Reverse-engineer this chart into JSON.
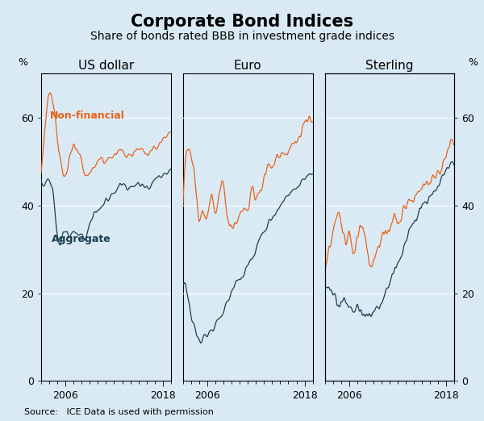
{
  "title": "Corporate Bond Indices",
  "subtitle": "Share of bonds rated BBB in investment grade indices",
  "panel_labels": [
    "US dollar",
    "Euro",
    "Sterling"
  ],
  "ylabel_left": "%",
  "ylabel_right": "%",
  "yticks": [
    0,
    20,
    40,
    60
  ],
  "ylim": [
    0,
    70
  ],
  "source": "Source:   ICE Data is used with permission",
  "background_color": "#daeaf5",
  "line_color_nonfinancial": "#e8621a",
  "line_color_aggregate": "#1c3d4f",
  "legend_nonfinancial": "Non-financial",
  "legend_aggregate": "Aggregate",
  "title_fontsize": 15,
  "subtitle_fontsize": 10,
  "panel_label_fontsize": 11,
  "tick_fontsize": 9,
  "source_fontsize": 8,
  "x_start_year": 2003.0,
  "x_end_year": 2019.0,
  "xtick_years": [
    2006,
    2018
  ],
  "linewidth": 0.9,
  "noise_sigma": 2.5,
  "smooth_sigma": 3.0
}
